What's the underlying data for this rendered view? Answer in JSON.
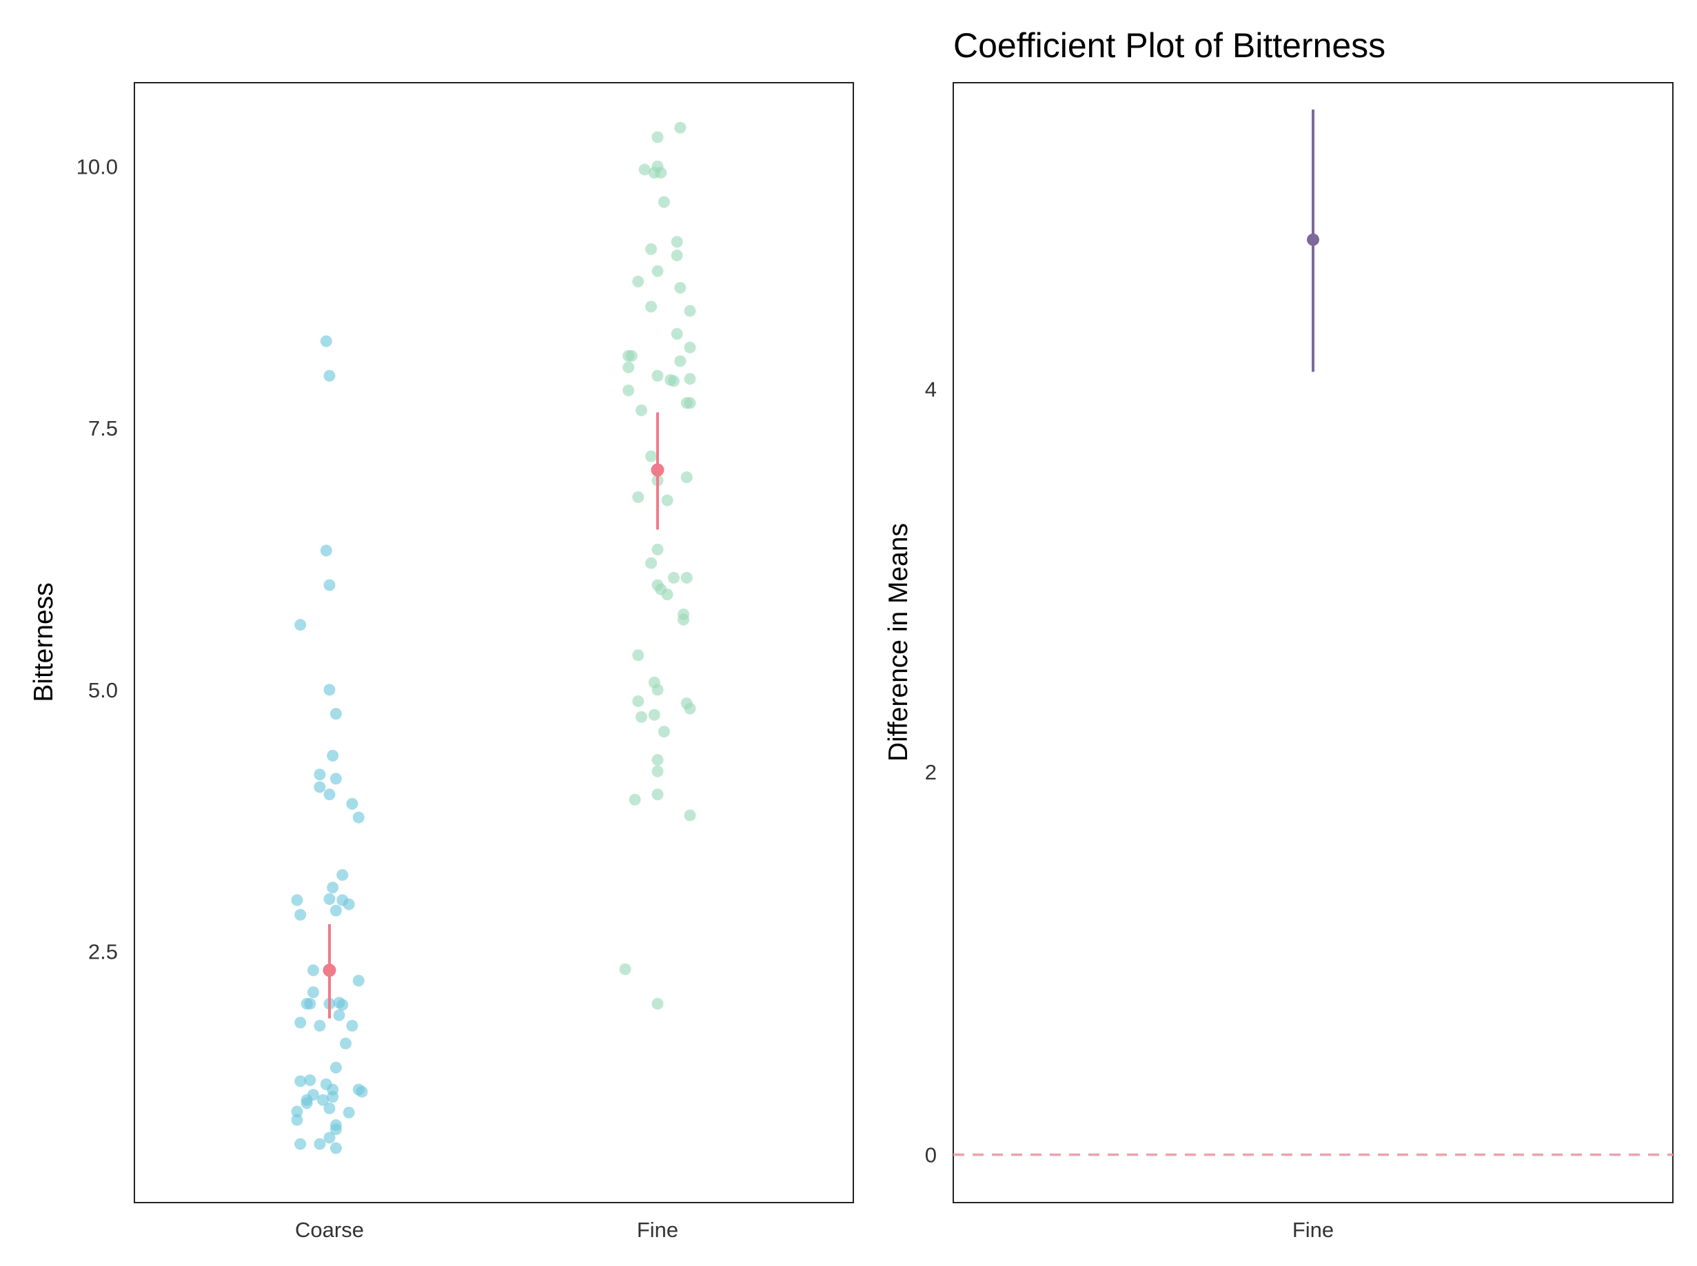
{
  "chart_data": [
    {
      "type": "scatter",
      "title": "",
      "xlabel": "",
      "ylabel": "Bitterness",
      "categories": [
        "Coarse",
        "Fine"
      ],
      "ylim": [
        0.1,
        10.8
      ],
      "yticks": [
        2.5,
        5.0,
        7.5,
        10.0
      ],
      "ytick_labels": [
        "2.5",
        "5.0",
        "7.5",
        "10.0"
      ],
      "grid": false,
      "colors": {
        "Coarse": "#6ec6dc",
        "Fine": "#9ad8b8",
        "mean": "#f07b8a"
      },
      "points": [
        {
          "category": "Coarse",
          "jitter": -0.01,
          "y": 8.33
        },
        {
          "category": "Coarse",
          "jitter": 0.0,
          "y": 8.0
        },
        {
          "category": "Coarse",
          "jitter": -0.01,
          "y": 6.33
        },
        {
          "category": "Coarse",
          "jitter": 0.0,
          "y": 6.0
        },
        {
          "category": "Coarse",
          "jitter": -0.09,
          "y": 5.62
        },
        {
          "category": "Coarse",
          "jitter": 0.0,
          "y": 5.0
        },
        {
          "category": "Coarse",
          "jitter": 0.02,
          "y": 4.77
        },
        {
          "category": "Coarse",
          "jitter": 0.01,
          "y": 4.37
        },
        {
          "category": "Coarse",
          "jitter": -0.03,
          "y": 4.19
        },
        {
          "category": "Coarse",
          "jitter": 0.02,
          "y": 4.15
        },
        {
          "category": "Coarse",
          "jitter": -0.03,
          "y": 4.07
        },
        {
          "category": "Coarse",
          "jitter": 0.0,
          "y": 4.0
        },
        {
          "category": "Coarse",
          "jitter": 0.07,
          "y": 3.91
        },
        {
          "category": "Coarse",
          "jitter": 0.09,
          "y": 3.78
        },
        {
          "category": "Coarse",
          "jitter": 0.04,
          "y": 3.23
        },
        {
          "category": "Coarse",
          "jitter": 0.01,
          "y": 3.11
        },
        {
          "category": "Coarse",
          "jitter": -0.1,
          "y": 2.99
        },
        {
          "category": "Coarse",
          "jitter": 0.0,
          "y": 3.0
        },
        {
          "category": "Coarse",
          "jitter": 0.04,
          "y": 2.99
        },
        {
          "category": "Coarse",
          "jitter": 0.06,
          "y": 2.95
        },
        {
          "category": "Coarse",
          "jitter": 0.02,
          "y": 2.89
        },
        {
          "category": "Coarse",
          "jitter": -0.09,
          "y": 2.85
        },
        {
          "category": "Coarse",
          "jitter": -0.05,
          "y": 2.32
        },
        {
          "category": "Coarse",
          "jitter": 0.09,
          "y": 2.22
        },
        {
          "category": "Coarse",
          "jitter": -0.05,
          "y": 2.11
        },
        {
          "category": "Coarse",
          "jitter": -0.07,
          "y": 2.0
        },
        {
          "category": "Coarse",
          "jitter": -0.06,
          "y": 2.0
        },
        {
          "category": "Coarse",
          "jitter": 0.0,
          "y": 2.0
        },
        {
          "category": "Coarse",
          "jitter": 0.03,
          "y": 2.01
        },
        {
          "category": "Coarse",
          "jitter": 0.04,
          "y": 1.99
        },
        {
          "category": "Coarse",
          "jitter": 0.03,
          "y": 1.89
        },
        {
          "category": "Coarse",
          "jitter": -0.09,
          "y": 1.82
        },
        {
          "category": "Coarse",
          "jitter": -0.03,
          "y": 1.79
        },
        {
          "category": "Coarse",
          "jitter": 0.07,
          "y": 1.79
        },
        {
          "category": "Coarse",
          "jitter": 0.05,
          "y": 1.62
        },
        {
          "category": "Coarse",
          "jitter": 0.02,
          "y": 1.39
        },
        {
          "category": "Coarse",
          "jitter": -0.09,
          "y": 1.26
        },
        {
          "category": "Coarse",
          "jitter": -0.06,
          "y": 1.27
        },
        {
          "category": "Coarse",
          "jitter": -0.01,
          "y": 1.23
        },
        {
          "category": "Coarse",
          "jitter": 0.01,
          "y": 1.18
        },
        {
          "category": "Coarse",
          "jitter": 0.09,
          "y": 1.18
        },
        {
          "category": "Coarse",
          "jitter": 0.1,
          "y": 1.16
        },
        {
          "category": "Coarse",
          "jitter": -0.05,
          "y": 1.13
        },
        {
          "category": "Coarse",
          "jitter": 0.01,
          "y": 1.11
        },
        {
          "category": "Coarse",
          "jitter": -0.07,
          "y": 1.08
        },
        {
          "category": "Coarse",
          "jitter": -0.02,
          "y": 1.08
        },
        {
          "category": "Coarse",
          "jitter": -0.07,
          "y": 1.05
        },
        {
          "category": "Coarse",
          "jitter": 0.0,
          "y": 1.0
        },
        {
          "category": "Coarse",
          "jitter": -0.1,
          "y": 0.97
        },
        {
          "category": "Coarse",
          "jitter": 0.06,
          "y": 0.96
        },
        {
          "category": "Coarse",
          "jitter": -0.1,
          "y": 0.89
        },
        {
          "category": "Coarse",
          "jitter": 0.02,
          "y": 0.84
        },
        {
          "category": "Coarse",
          "jitter": 0.02,
          "y": 0.8
        },
        {
          "category": "Coarse",
          "jitter": 0.0,
          "y": 0.72
        },
        {
          "category": "Coarse",
          "jitter": -0.09,
          "y": 0.66
        },
        {
          "category": "Coarse",
          "jitter": -0.03,
          "y": 0.66
        },
        {
          "category": "Coarse",
          "jitter": 0.02,
          "y": 0.62
        },
        {
          "category": "Fine",
          "jitter": 0.07,
          "y": 10.37
        },
        {
          "category": "Fine",
          "jitter": 0.0,
          "y": 10.28
        },
        {
          "category": "Fine",
          "jitter": 0.0,
          "y": 10.0
        },
        {
          "category": "Fine",
          "jitter": -0.04,
          "y": 9.97
        },
        {
          "category": "Fine",
          "jitter": -0.01,
          "y": 9.94
        },
        {
          "category": "Fine",
          "jitter": 0.01,
          "y": 9.94
        },
        {
          "category": "Fine",
          "jitter": 0.02,
          "y": 9.66
        },
        {
          "category": "Fine",
          "jitter": 0.06,
          "y": 9.28
        },
        {
          "category": "Fine",
          "jitter": -0.02,
          "y": 9.21
        },
        {
          "category": "Fine",
          "jitter": 0.06,
          "y": 9.15
        },
        {
          "category": "Fine",
          "jitter": 0.0,
          "y": 9.0
        },
        {
          "category": "Fine",
          "jitter": -0.06,
          "y": 8.9
        },
        {
          "category": "Fine",
          "jitter": 0.07,
          "y": 8.84
        },
        {
          "category": "Fine",
          "jitter": -0.02,
          "y": 8.66
        },
        {
          "category": "Fine",
          "jitter": 0.1,
          "y": 8.62
        },
        {
          "category": "Fine",
          "jitter": 0.06,
          "y": 8.4
        },
        {
          "category": "Fine",
          "jitter": 0.1,
          "y": 8.27
        },
        {
          "category": "Fine",
          "jitter": -0.09,
          "y": 8.19
        },
        {
          "category": "Fine",
          "jitter": -0.08,
          "y": 8.19
        },
        {
          "category": "Fine",
          "jitter": 0.07,
          "y": 8.14
        },
        {
          "category": "Fine",
          "jitter": -0.09,
          "y": 8.08
        },
        {
          "category": "Fine",
          "jitter": 0.0,
          "y": 8.0
        },
        {
          "category": "Fine",
          "jitter": 0.04,
          "y": 7.96
        },
        {
          "category": "Fine",
          "jitter": 0.05,
          "y": 7.95
        },
        {
          "category": "Fine",
          "jitter": 0.1,
          "y": 7.97
        },
        {
          "category": "Fine",
          "jitter": -0.09,
          "y": 7.86
        },
        {
          "category": "Fine",
          "jitter": 0.09,
          "y": 7.74
        },
        {
          "category": "Fine",
          "jitter": 0.1,
          "y": 7.74
        },
        {
          "category": "Fine",
          "jitter": -0.05,
          "y": 7.67
        },
        {
          "category": "Fine",
          "jitter": -0.02,
          "y": 7.23
        },
        {
          "category": "Fine",
          "jitter": 0.09,
          "y": 7.03
        },
        {
          "category": "Fine",
          "jitter": 0.0,
          "y": 7.0
        },
        {
          "category": "Fine",
          "jitter": -0.06,
          "y": 6.84
        },
        {
          "category": "Fine",
          "jitter": 0.03,
          "y": 6.81
        },
        {
          "category": "Fine",
          "jitter": 0.0,
          "y": 6.34
        },
        {
          "category": "Fine",
          "jitter": -0.02,
          "y": 6.21
        },
        {
          "category": "Fine",
          "jitter": 0.05,
          "y": 6.07
        },
        {
          "category": "Fine",
          "jitter": 0.09,
          "y": 6.07
        },
        {
          "category": "Fine",
          "jitter": 0.0,
          "y": 6.0
        },
        {
          "category": "Fine",
          "jitter": 0.01,
          "y": 5.96
        },
        {
          "category": "Fine",
          "jitter": 0.03,
          "y": 5.91
        },
        {
          "category": "Fine",
          "jitter": 0.08,
          "y": 5.72
        },
        {
          "category": "Fine",
          "jitter": 0.08,
          "y": 5.67
        },
        {
          "category": "Fine",
          "jitter": -0.06,
          "y": 5.33
        },
        {
          "category": "Fine",
          "jitter": -0.01,
          "y": 5.07
        },
        {
          "category": "Fine",
          "jitter": 0.0,
          "y": 5.0
        },
        {
          "category": "Fine",
          "jitter": -0.06,
          "y": 4.89
        },
        {
          "category": "Fine",
          "jitter": 0.09,
          "y": 4.87
        },
        {
          "category": "Fine",
          "jitter": 0.1,
          "y": 4.82
        },
        {
          "category": "Fine",
          "jitter": -0.01,
          "y": 4.76
        },
        {
          "category": "Fine",
          "jitter": -0.05,
          "y": 4.74
        },
        {
          "category": "Fine",
          "jitter": 0.02,
          "y": 4.6
        },
        {
          "category": "Fine",
          "jitter": 0.0,
          "y": 4.33
        },
        {
          "category": "Fine",
          "jitter": 0.0,
          "y": 4.22
        },
        {
          "category": "Fine",
          "jitter": 0.0,
          "y": 4.0
        },
        {
          "category": "Fine",
          "jitter": -0.07,
          "y": 3.95
        },
        {
          "category": "Fine",
          "jitter": 0.1,
          "y": 3.8
        },
        {
          "category": "Fine",
          "jitter": -0.1,
          "y": 2.33
        },
        {
          "category": "Fine",
          "jitter": 0.0,
          "y": 2.0
        }
      ],
      "means": [
        {
          "category": "Coarse",
          "mean": 2.32,
          "ci": [
            1.86,
            2.76
          ]
        },
        {
          "category": "Fine",
          "mean": 7.1,
          "ci": [
            6.53,
            7.65
          ]
        }
      ]
    },
    {
      "type": "scatter",
      "title": "Coefficient Plot of Bitterness",
      "xlabel": "",
      "ylabel": "Difference in Means",
      "categories": [
        "Fine"
      ],
      "ylim": [
        -0.25,
        5.6
      ],
      "yticks": [
        0,
        2,
        4
      ],
      "ytick_labels": [
        "0",
        "2",
        "4"
      ],
      "grid": false,
      "reference_line": {
        "y": 0,
        "style": "dashed",
        "color": "#f0a0ac"
      },
      "colors": {
        "estimate": "#7b6a9a"
      },
      "estimates": [
        {
          "category": "Fine",
          "estimate": 4.78,
          "ci": [
            4.09,
            5.46
          ]
        }
      ]
    }
  ]
}
